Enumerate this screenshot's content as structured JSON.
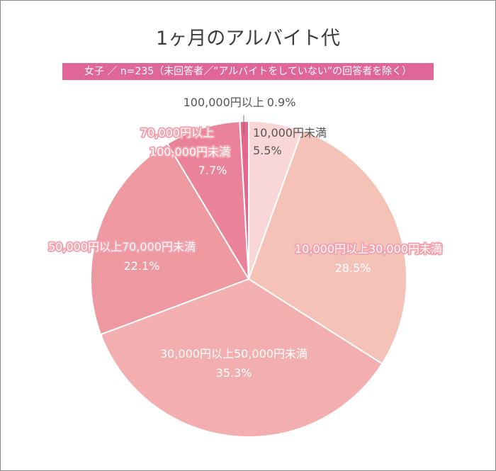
{
  "title": "1ヶ月のアルバイト代",
  "subtitle": "女子 ／ n=235（未回答者／”アルバイトをしていない”の回答者を除く）",
  "chart_data": {
    "type": "pie",
    "title": "1ヶ月のアルバイト代",
    "subtitle": "女子 ／ n=235（未回答者／”アルバイトをしていない”の回答者を除く）",
    "start": "12 o'clock",
    "direction": "clockwise",
    "slices": [
      {
        "label": "10,000円未満",
        "value": 5.5,
        "value_label": "5.5%",
        "color": "#f8d7d6"
      },
      {
        "label": "10,000円以上30,000円未満",
        "value": 28.5,
        "value_label": "28.5%",
        "color": "#f5c2b8"
      },
      {
        "label": "30,000円以上50,000円未満",
        "value": 35.3,
        "value_label": "35.3%",
        "color": "#f3afaf"
      },
      {
        "label": "50,000円以上70,000円未満",
        "value": 22.1,
        "value_label": "22.1%",
        "color": "#ee98a0"
      },
      {
        "label": "70,000円以上100,000円未満",
        "value": 7.7,
        "value_label": "7.7%",
        "color": "#ea8399"
      },
      {
        "label": "100,000円以上",
        "value": 0.9,
        "value_label": "0.9%",
        "color": "#e5668a"
      }
    ]
  }
}
